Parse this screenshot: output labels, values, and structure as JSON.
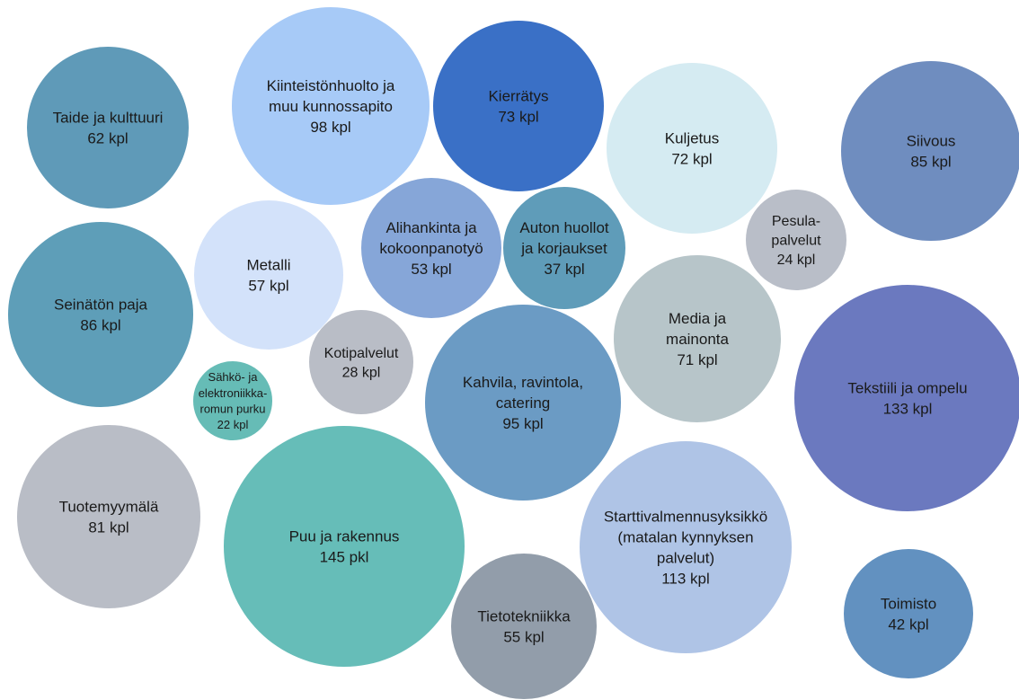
{
  "chart_data": {
    "type": "bubble",
    "title": "",
    "bubbles": [
      {
        "lines": [
          "Taide ja kulttuuri",
          "62 kpl"
        ],
        "value": 62,
        "color": "#5f9ab8"
      },
      {
        "lines": [
          "Kiinteistönhuolto ja",
          "muu kunnossapito",
          "98 kpl"
        ],
        "value": 98,
        "color": "#a7caf7"
      },
      {
        "lines": [
          "Kierrätys",
          "73 kpl"
        ],
        "value": 73,
        "color": "#3a70c6"
      },
      {
        "lines": [
          "Kuljetus",
          "72 kpl"
        ],
        "value": 72,
        "color": "#d5ebf2"
      },
      {
        "lines": [
          "Siivous",
          "85 kpl"
        ],
        "value": 85,
        "color": "#6f8dbf"
      },
      {
        "lines": [
          "Seinätön paja",
          "86 kpl"
        ],
        "value": 86,
        "color": "#5e9eb8"
      },
      {
        "lines": [
          "Metalli",
          "57 kpl"
        ],
        "value": 57,
        "color": "#d3e2fa"
      },
      {
        "lines": [
          "Alihankinta ja",
          "kokoonpanotyö",
          "53 kpl"
        ],
        "value": 53,
        "color": "#86a6d8"
      },
      {
        "lines": [
          "Auton huollot",
          "ja korjaukset",
          "37 kpl"
        ],
        "value": 37,
        "color": "#5f9cb9"
      },
      {
        "lines": [
          "Pesula-",
          "palvelut",
          "24 kpl"
        ],
        "value": 24,
        "color": "#b9bec8"
      },
      {
        "lines": [
          "Media ja",
          "mainonta",
          "71 kpl"
        ],
        "value": 71,
        "color": "#b7c5c9"
      },
      {
        "lines": [
          "Kotipalvelut",
          "28 kpl"
        ],
        "value": 28,
        "color": "#b9bdc6"
      },
      {
        "lines": [
          "Sähkö- ja",
          "elektroniikka-",
          "romun purku",
          "22 kpl"
        ],
        "value": 22,
        "color": "#66bcb6"
      },
      {
        "lines": [
          "Kahvila, ravintola,",
          "catering",
          "95 kpl"
        ],
        "value": 95,
        "color": "#6b9bc4"
      },
      {
        "lines": [
          "Tekstiili ja ompelu",
          "133 kpl"
        ],
        "value": 133,
        "color": "#6b79bf"
      },
      {
        "lines": [
          "Tuotemyymälä",
          "81 kpl"
        ],
        "value": 81,
        "color": "#b9bdc6"
      },
      {
        "lines": [
          "Puu ja rakennus",
          "145 pkl"
        ],
        "value": 145,
        "color": "#66bdb8"
      },
      {
        "lines": [
          "Starttivalmennusyksikkö",
          "(matalan kynnyksen",
          "palvelut)",
          "113 kpl"
        ],
        "value": 113,
        "color": "#afc4e6"
      },
      {
        "lines": [
          "Tietotekniikka",
          "55 kpl"
        ],
        "value": 55,
        "color": "#929daa"
      },
      {
        "lines": [
          "Toimisto",
          "42 kpl"
        ],
        "value": 42,
        "color": "#6291c0"
      }
    ]
  }
}
